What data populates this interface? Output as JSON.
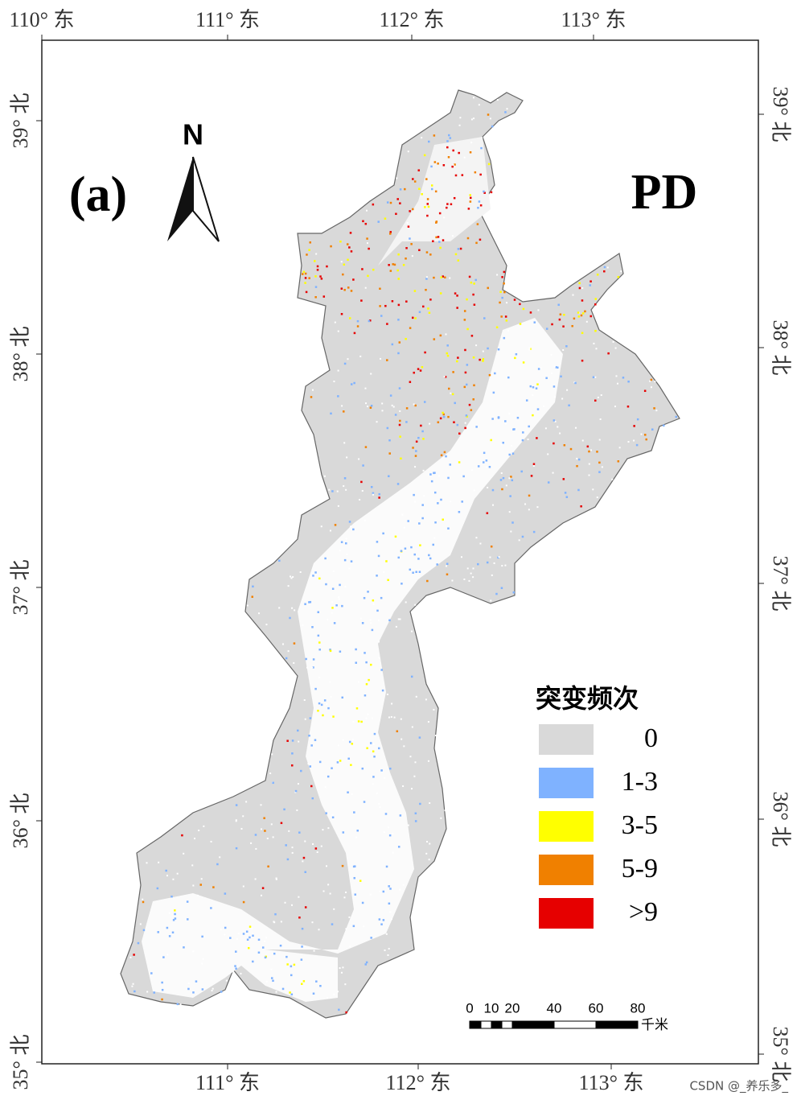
{
  "panel_label": "(a)",
  "index_label": "PD",
  "north": "N",
  "longitude_labels_top": [
    "110° 东",
    "111° 东",
    "112° 东",
    "113° 东"
  ],
  "longitude_labels_bottom": [
    "111° 东",
    "112° 东",
    "113° 东"
  ],
  "latitude_labels_left": [
    "39° 北",
    "38° 北",
    "37° 北",
    "36° 北",
    "35° 北"
  ],
  "latitude_labels_right": [
    "39° 北",
    "38° 北",
    "37° 北",
    "36° 北",
    "35° 北"
  ],
  "legend": {
    "title": "突变频次",
    "items": [
      {
        "label": "0",
        "color": "#d9d9d9"
      },
      {
        "label": "1-3",
        "color": "#7fb2ff"
      },
      {
        "label": "3-5",
        "color": "#ffff00"
      },
      {
        "label": "5-9",
        "color": "#f08000"
      },
      {
        "label": ">9",
        "color": "#e60000"
      }
    ]
  },
  "scale_bar": {
    "labels": [
      "0",
      "10",
      "20",
      "40",
      "60",
      "80"
    ],
    "unit": "千米"
  },
  "watermark": "CSDN @_养乐多_"
}
